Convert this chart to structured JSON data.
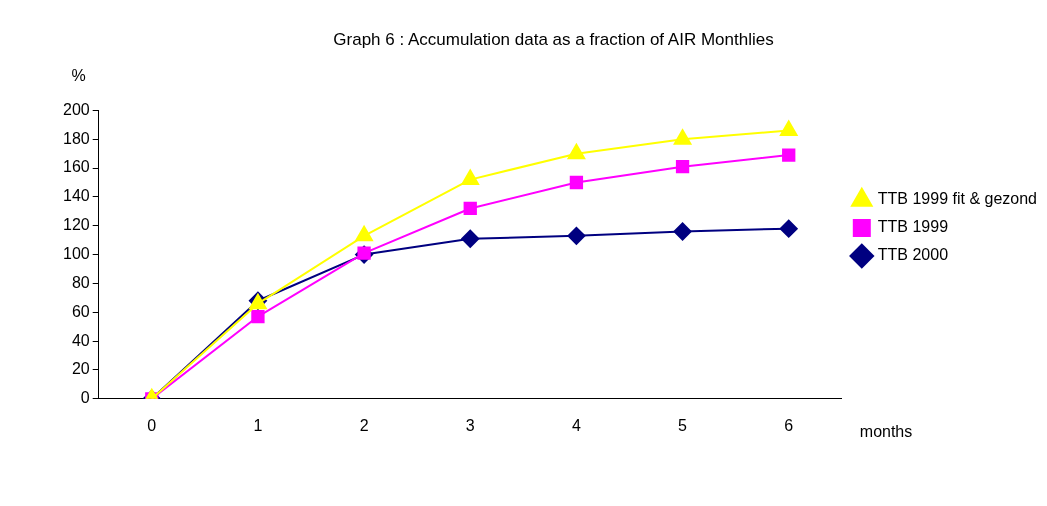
{
  "chart_data": {
    "type": "line",
    "title": "Graph 6 : Accumulation data as a fraction of AIR Monthlies",
    "xlabel": "months",
    "ylabel": "%",
    "categories": [
      "0",
      "1",
      "2",
      "3",
      "4",
      "5",
      "6"
    ],
    "series": [
      {
        "name": "TTB 2000",
        "color": "#000080",
        "marker": "diamond",
        "values": [
          0,
          68,
          100,
          111,
          113,
          116,
          118
        ]
      },
      {
        "name": "TTB 1999",
        "color": "#ff00ff",
        "marker": "square",
        "values": [
          0,
          57,
          101,
          132,
          150,
          161,
          169
        ]
      },
      {
        "name": "TTB 1999 fit & gezond",
        "color": "#ffff00",
        "marker": "triangle",
        "values": [
          0,
          66,
          113,
          152,
          170,
          180,
          186
        ]
      }
    ],
    "ylim": [
      0,
      200
    ],
    "yticks": [
      0,
      20,
      40,
      60,
      80,
      100,
      120,
      140,
      160,
      180,
      200
    ],
    "grid": false,
    "legend": "right"
  }
}
